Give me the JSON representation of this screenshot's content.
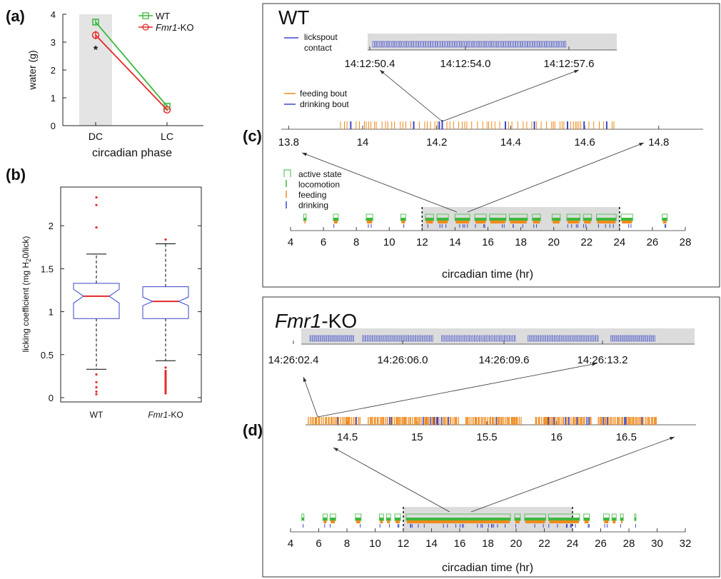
{
  "chart_data": [
    {
      "panel": "(a)",
      "type": "line",
      "xlabel": "circadian phase",
      "ylabel": "water (g)",
      "categories": [
        "DC",
        "LC"
      ],
      "ylim": [
        0,
        4
      ],
      "yticks": [
        0,
        1,
        2,
        3,
        4
      ],
      "shaded_category": "DC",
      "annotation": "*",
      "series": [
        {
          "name": "WT",
          "color": "#3cb83c",
          "marker": "square",
          "values": [
            3.72,
            0.7
          ],
          "errors": [
            0.1,
            0.06
          ]
        },
        {
          "name_prefix": "Fmr1",
          "name_suffix": "-KO",
          "color": "#e32a2a",
          "marker": "circle",
          "values": [
            3.25,
            0.57
          ],
          "errors": [
            0.15,
            0.05
          ]
        }
      ]
    },
    {
      "panel": "(b)",
      "type": "box",
      "ylabel_main": "licking coefficient (mg H",
      "ylabel_sub": "2",
      "ylabel_tail": "0/lick)",
      "categories": [
        {
          "label": "WT",
          "italic_part": "",
          "plain_part": "WT"
        },
        {
          "label": "Fmr1-KO",
          "italic_part": "Fmr1",
          "plain_part": "-KO"
        }
      ],
      "ylim": [
        -0.05,
        2.45
      ],
      "yticks": [
        0,
        0.5,
        1,
        1.5,
        2
      ],
      "ytick_labels": [
        "0",
        "0.5",
        "1",
        "1.5",
        "2"
      ],
      "boxes": [
        {
          "q1": 0.92,
          "median": 1.18,
          "q3": 1.33,
          "notch_lo": 1.1,
          "notch_hi": 1.26,
          "whisker_lo": 0.33,
          "whisker_hi": 1.67,
          "outliers": [
            0.04,
            0.07,
            0.12,
            0.18,
            0.27,
            1.98,
            2.24,
            2.33
          ]
        },
        {
          "q1": 0.92,
          "median": 1.12,
          "q3": 1.29,
          "notch_lo": 1.07,
          "notch_hi": 1.17,
          "whisker_lo": 0.43,
          "whisker_hi": 1.79,
          "outliers": [
            0.05,
            0.07,
            0.09,
            0.11,
            0.13,
            0.15,
            0.17,
            0.19,
            0.21,
            0.23,
            0.25,
            0.27,
            0.29,
            0.31,
            0.35,
            1.84
          ]
        }
      ],
      "colors": {
        "box": "#3a46c8",
        "median": "#e32a2a",
        "outlier": "#e32a2a",
        "whisker": "#000000"
      }
    },
    {
      "panel": "(c)",
      "type": "timeline",
      "title": "WT",
      "colors": {
        "active": "#5cc35c",
        "locomotion": "#3cb83c",
        "feeding": "#f08a1c",
        "drinking": "#3a46c8",
        "shade": "#dcdcdc"
      },
      "zoom2": {
        "legend": [
          "lickspout",
          "contact"
        ],
        "ticks": [
          "14:12:50.4",
          "14:12:54.0",
          "14:12:57.6"
        ],
        "lick_count": 80
      },
      "zoom1": {
        "legend": [
          "feeding bout",
          "drinking bout"
        ],
        "xlim": [
          13.78,
          14.92
        ],
        "ticks": [
          13.8,
          14,
          14.2,
          14.4,
          14.6,
          14.8
        ],
        "tick_labels": [
          "13.8",
          "14",
          "14.2",
          "14.4",
          "14.6",
          "14.8"
        ],
        "feeding_start": 13.94,
        "feeding_end": 14.68
      },
      "overview": {
        "legend": [
          "active state",
          "locomotion",
          "feeding",
          "drinking"
        ],
        "xlabel": "circadian time (hr)",
        "xlim": [
          4,
          28
        ],
        "ticks": [
          4,
          6,
          8,
          10,
          12,
          14,
          16,
          18,
          20,
          22,
          24,
          26,
          28
        ],
        "tick_labels": [
          "4",
          "6",
          "8",
          "10",
          "12",
          "14",
          "16",
          "18",
          "20",
          "22",
          "24",
          "26",
          "28"
        ],
        "dark_phase": [
          12,
          24
        ],
        "bouts": [
          [
            4.8,
            4.95
          ],
          [
            6.6,
            6.9
          ],
          [
            8.6,
            9.0
          ],
          [
            10.7,
            11.0
          ],
          [
            12.2,
            12.7
          ],
          [
            12.9,
            13.6
          ],
          [
            14.0,
            14.9
          ],
          [
            15.2,
            15.9
          ],
          [
            16.1,
            17.1
          ],
          [
            17.3,
            18.4
          ],
          [
            18.7,
            19.2
          ],
          [
            19.9,
            20.4
          ],
          [
            20.8,
            21.6
          ],
          [
            21.8,
            22.3
          ],
          [
            22.6,
            23.8
          ],
          [
            24.1,
            24.8
          ],
          [
            26.6,
            26.9
          ]
        ]
      }
    },
    {
      "panel": "(d)",
      "type": "timeline",
      "title_italic": "Fmr1",
      "title_suffix": "-KO",
      "zoom2": {
        "ticks": [
          "14:26:02.4",
          "14:26:06.0",
          "14:26:09.6",
          "14:26:13.2"
        ],
        "lick_groups": [
          [
            0.0,
            0.12,
            10
          ],
          [
            0.14,
            0.33,
            15
          ],
          [
            0.35,
            0.55,
            15
          ],
          [
            0.58,
            0.77,
            15
          ],
          [
            0.8,
            0.92,
            10
          ]
        ]
      },
      "zoom1": {
        "xlim": [
          14.2,
          17.0
        ],
        "ticks": [
          14.5,
          15,
          15.5,
          16,
          16.5
        ],
        "tick_labels": [
          "14.5",
          "15",
          "15.5",
          "16",
          "16.5"
        ],
        "bout_blocks": [
          [
            14.22,
            14.6
          ],
          [
            14.65,
            15.3
          ],
          [
            15.35,
            15.75
          ],
          [
            15.85,
            16.25
          ],
          [
            16.3,
            16.72
          ]
        ]
      },
      "overview": {
        "xlabel": "circadian time (hr)",
        "xlim": [
          4,
          32
        ],
        "ticks": [
          4,
          6,
          8,
          10,
          12,
          14,
          16,
          18,
          20,
          22,
          24,
          26,
          28,
          30,
          32
        ],
        "tick_labels": [
          "4",
          "6",
          "8",
          "10",
          "12",
          "14",
          "16",
          "18",
          "20",
          "22",
          "24",
          "26",
          "28",
          "30",
          "32"
        ],
        "dark_phase": [
          12,
          24
        ],
        "bouts": [
          [
            4.8,
            4.95
          ],
          [
            6.3,
            6.6
          ],
          [
            6.8,
            7.2
          ],
          [
            8.6,
            9.0
          ],
          [
            10.3,
            10.6
          ],
          [
            10.8,
            11.1
          ],
          [
            11.4,
            11.8
          ],
          [
            12.2,
            19.6
          ],
          [
            19.9,
            20.3
          ],
          [
            20.6,
            22.1
          ],
          [
            22.3,
            24.5
          ],
          [
            24.8,
            25.2
          ],
          [
            26.2,
            26.6
          ],
          [
            26.8,
            27.1
          ],
          [
            27.4,
            27.6
          ],
          [
            28.4,
            28.5
          ]
        ]
      }
    }
  ]
}
